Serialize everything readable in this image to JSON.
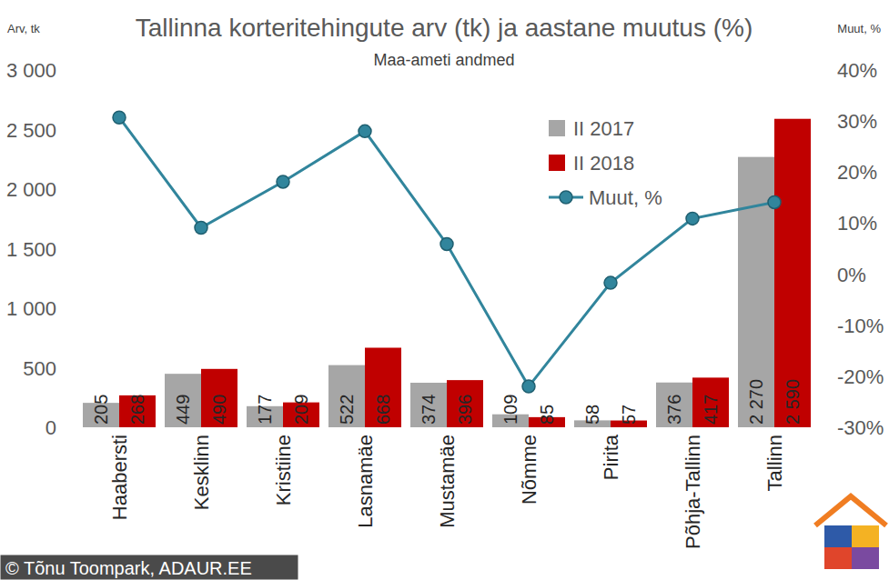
{
  "chart_data": {
    "type": "bar",
    "title": "Tallinna korteritehingute arv (tk) ja aastane muutus (%)",
    "subtitle": "Maa-ameti andmed",
    "ylabel": "Arv, tk",
    "y2label": "Muut, %",
    "annotations": [
      "© Tõnu Toompark, ADAUR.EE"
    ],
    "categories": [
      "Haabersti",
      "Kesklinn",
      "Kristiine",
      "Lasnamäe",
      "Mustamäe",
      "Nõmme",
      "Pirita",
      "Põhja-Tallinn",
      "Tallinn"
    ],
    "series": [
      {
        "name": "II 2017",
        "type": "bar",
        "color": "#a6a6a6",
        "values": [
          205,
          449,
          177,
          522,
          374,
          109,
          58,
          376,
          2270
        ],
        "value_labels": [
          "205",
          "449",
          "177",
          "522",
          "374",
          "109",
          "58",
          "376",
          "2 270"
        ]
      },
      {
        "name": "II 2018",
        "type": "bar",
        "color": "#c00000",
        "values": [
          268,
          490,
          209,
          668,
          396,
          85,
          57,
          417,
          2590
        ],
        "value_labels": [
          "268",
          "490",
          "209",
          "668",
          "396",
          "85",
          "57",
          "417",
          "2 590"
        ]
      },
      {
        "name": "Muut, %",
        "type": "line",
        "axis": "y2",
        "color": "#31859c",
        "marker": "circle",
        "values": [
          30.7,
          9.1,
          18.1,
          28.0,
          5.9,
          -22.0,
          -1.7,
          10.9,
          14.1
        ]
      }
    ],
    "ylim": [
      0,
      3000
    ],
    "yticks": [
      0,
      500,
      {
        "value": 1000,
        "label": "1 000"
      },
      {
        "value": 1500,
        "label": "1 500"
      },
      {
        "value": 2000,
        "label": "2 000"
      },
      {
        "value": 2500,
        "label": "2 500"
      },
      {
        "value": 3000,
        "label": "3 000"
      }
    ],
    "y2lim": [
      -30,
      40
    ],
    "y2ticks": [
      {
        "value": -30,
        "label": "-30%"
      },
      {
        "value": -20,
        "label": "-20%"
      },
      {
        "value": -10,
        "label": "-10%"
      },
      {
        "value": 0,
        "label": "0%"
      },
      {
        "value": 10,
        "label": "10%"
      },
      {
        "value": 20,
        "label": "20%"
      },
      {
        "value": 30,
        "label": "30%"
      },
      {
        "value": 40,
        "label": "40%"
      }
    ],
    "grid": false,
    "legend": "top-right",
    "data_labels": true
  }
}
